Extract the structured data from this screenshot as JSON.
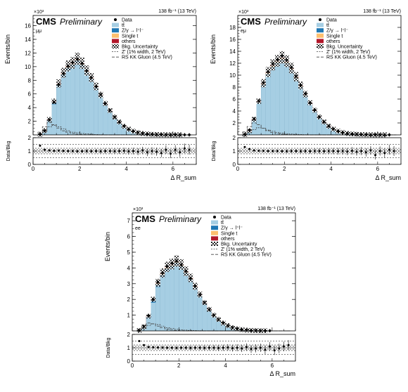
{
  "chart_data": [
    {
      "type": "bar",
      "panel": "top-left",
      "channel": "μμ",
      "experiment": "CMS",
      "status": "Preliminary",
      "lumi": "138 fb⁻¹ (13 TeV)",
      "exponent_label": "×10³",
      "ylabel": "Events/bin",
      "xlabel": "Δ R_sum",
      "ratio_ylabel": "Data/Bkg",
      "ylim": [
        0,
        17.5
      ],
      "ratio_ylim": [
        0,
        2
      ],
      "xlim": [
        0,
        7
      ],
      "yticks": [
        2,
        4,
        6,
        8,
        10,
        12,
        14,
        16
      ],
      "xticks": [
        0,
        2,
        4,
        6
      ],
      "ratio_yticks": [
        0,
        1,
        2
      ],
      "legend_position": "top-right",
      "legend": [
        "Data",
        "tt̄",
        "Z/γ → l⁺l⁻",
        "Single t",
        "others",
        "Bkg. Uncertainty",
        "Z′ (1% width, 2 TeV)",
        "RS KK Gluon (4.5 TeV)"
      ],
      "bin_edges": [
        0.2,
        0.4,
        0.6,
        0.8,
        1.0,
        1.2,
        1.4,
        1.6,
        1.8,
        2.0,
        2.2,
        2.4,
        2.6,
        2.8,
        3.0,
        3.2,
        3.4,
        3.6,
        3.8,
        4.0,
        4.2,
        4.4,
        4.6,
        4.8,
        5.0,
        5.2,
        5.4,
        5.6,
        5.8,
        6.0,
        6.2,
        6.4,
        6.6,
        6.8
      ],
      "series": [
        {
          "name": "tt̄",
          "values": [
            0.05,
            0.5,
            2.0,
            4.5,
            7.0,
            8.5,
            9.5,
            10.0,
            10.6,
            10.0,
            9.0,
            8.0,
            6.8,
            5.6,
            4.4,
            3.4,
            2.5,
            1.8,
            1.2,
            0.8,
            0.5,
            0.3,
            0.2,
            0.12,
            0.08,
            0.05,
            0.03,
            0.02,
            0.01,
            0.01,
            0.01,
            0.0,
            0.0
          ]
        },
        {
          "name": "Z/γ → l⁺l⁻",
          "values": [
            0.02,
            0.1,
            0.2,
            0.3,
            0.35,
            0.35,
            0.35,
            0.3,
            0.3,
            0.25,
            0.2,
            0.2,
            0.15,
            0.12,
            0.1,
            0.08,
            0.06,
            0.05,
            0.03,
            0.02,
            0.02,
            0.01,
            0.01,
            0.01,
            0.0,
            0.0,
            0.0,
            0.0,
            0.0,
            0.0,
            0.0,
            0.0,
            0.0
          ]
        },
        {
          "name": "Single t",
          "values": [
            0.0,
            0.02,
            0.05,
            0.1,
            0.15,
            0.2,
            0.2,
            0.2,
            0.2,
            0.2,
            0.18,
            0.15,
            0.12,
            0.1,
            0.08,
            0.06,
            0.04,
            0.03,
            0.02,
            0.02,
            0.01,
            0.01,
            0.0,
            0.0,
            0.0,
            0.0,
            0.0,
            0.0,
            0.0,
            0.0,
            0.0,
            0.0,
            0.0
          ]
        },
        {
          "name": "others",
          "values": [
            0.0,
            0.01,
            0.02,
            0.03,
            0.04,
            0.05,
            0.05,
            0.05,
            0.05,
            0.05,
            0.05,
            0.04,
            0.03,
            0.03,
            0.02,
            0.02,
            0.01,
            0.01,
            0.01,
            0.0,
            0.0,
            0.0,
            0.0,
            0.0,
            0.0,
            0.0,
            0.0,
            0.0,
            0.0,
            0.0,
            0.0,
            0.0,
            0.0
          ]
        },
        {
          "name": "Data",
          "values": [
            0.08,
            0.6,
            2.2,
            4.8,
            7.4,
            9.0,
            10.1,
            10.6,
            11.1,
            10.5,
            9.4,
            8.4,
            7.1,
            5.9,
            4.6,
            3.6,
            2.6,
            1.9,
            1.3,
            0.85,
            0.55,
            0.35,
            0.22,
            0.14,
            0.09,
            0.06,
            0.04,
            0.02,
            0.02,
            0.01,
            0.01,
            0.01,
            0.01
          ]
        }
      ],
      "signal_zprime": [
        0.2,
        0.6,
        1.2,
        1.4,
        1.2,
        0.9,
        0.6,
        0.4,
        0.3,
        0.2,
        0.15,
        0.1,
        0.05,
        0.02,
        0.01,
        0.0,
        0.0,
        0.0,
        0.0,
        0.0,
        0.0,
        0.0,
        0.0,
        0.0,
        0.0,
        0.0,
        0.0,
        0.0,
        0.0,
        0.0,
        0.0,
        0.0,
        0.0
      ],
      "signal_kk": [
        0.4,
        1.2,
        1.8,
        1.5,
        1.0,
        0.6,
        0.4,
        0.2,
        0.1,
        0.05,
        0.02,
        0.01,
        0.0,
        0.0,
        0.0,
        0.0,
        0.0,
        0.0,
        0.0,
        0.0,
        0.0,
        0.0,
        0.0,
        0.0,
        0.0,
        0.0,
        0.0,
        0.0,
        0.0,
        0.0,
        0.0,
        0.0,
        0.0
      ],
      "ratio": [
        1.4,
        1.1,
        1.05,
        1.02,
        1.03,
        1.01,
        1.0,
        1.0,
        0.98,
        0.99,
        1.0,
        0.99,
        1.0,
        0.98,
        1.0,
        1.0,
        0.99,
        1.0,
        1.02,
        0.98,
        1.0,
        0.95,
        1.05,
        0.9,
        1.0,
        0.95,
        0.85,
        1.1,
        0.8,
        1.1,
        0.9,
        1.2,
        1.1
      ]
    },
    {
      "type": "bar",
      "panel": "top-right",
      "channel": "eμ",
      "experiment": "CMS",
      "status": "Preliminary",
      "lumi": "138 fb⁻¹ (13 TeV)",
      "exponent_label": "×10³",
      "ylabel": "Events/bin",
      "xlabel": "Δ R_sum",
      "ratio_ylabel": "Data/Bkg",
      "ylim": [
        0,
        20
      ],
      "ratio_ylim": [
        0,
        2
      ],
      "xlim": [
        0,
        7
      ],
      "yticks": [
        2,
        4,
        6,
        8,
        10,
        12,
        14,
        16,
        18
      ],
      "xticks": [
        0,
        2,
        4,
        6
      ],
      "ratio_yticks": [
        0,
        1,
        2
      ],
      "legend_position": "top-right",
      "legend": [
        "Data",
        "tt̄",
        "Z/γ → l⁺l⁻",
        "Single t",
        "others",
        "Bkg. Uncertainty",
        "Z′ (1% width, 2 TeV)",
        "RS KK Gluon (4.5 TeV)"
      ],
      "bin_edges": [
        0.2,
        0.4,
        0.6,
        0.8,
        1.0,
        1.2,
        1.4,
        1.6,
        1.8,
        2.0,
        2.2,
        2.4,
        2.6,
        2.8,
        3.0,
        3.2,
        3.4,
        3.6,
        3.8,
        4.0,
        4.2,
        4.4,
        4.6,
        4.8,
        5.0,
        5.2,
        5.4,
        5.6,
        5.8,
        6.0,
        6.2,
        6.4,
        6.6,
        6.8
      ],
      "series": [
        {
          "name": "tt̄",
          "values": [
            0.05,
            0.6,
            2.4,
            5.3,
            8.2,
            10.0,
            11.2,
            11.9,
            12.5,
            11.9,
            10.8,
            9.4,
            8.0,
            6.6,
            5.2,
            4.0,
            2.9,
            2.1,
            1.4,
            0.95,
            0.6,
            0.38,
            0.24,
            0.15,
            0.1,
            0.06,
            0.04,
            0.02,
            0.01,
            0.01,
            0.01,
            0.0,
            0.0
          ]
        },
        {
          "name": "Z/γ → l⁺l⁻",
          "values": [
            0.01,
            0.05,
            0.1,
            0.15,
            0.18,
            0.18,
            0.16,
            0.14,
            0.12,
            0.1,
            0.08,
            0.07,
            0.05,
            0.04,
            0.03,
            0.02,
            0.02,
            0.01,
            0.01,
            0.0,
            0.0,
            0.0,
            0.0,
            0.0,
            0.0,
            0.0,
            0.0,
            0.0,
            0.0,
            0.0,
            0.0,
            0.0,
            0.0
          ]
        },
        {
          "name": "Single t",
          "values": [
            0.0,
            0.03,
            0.08,
            0.15,
            0.22,
            0.28,
            0.3,
            0.3,
            0.3,
            0.28,
            0.25,
            0.22,
            0.18,
            0.14,
            0.11,
            0.08,
            0.06,
            0.04,
            0.03,
            0.02,
            0.01,
            0.01,
            0.0,
            0.0,
            0.0,
            0.0,
            0.0,
            0.0,
            0.0,
            0.0,
            0.0,
            0.0,
            0.0
          ]
        },
        {
          "name": "others",
          "values": [
            0.0,
            0.01,
            0.02,
            0.04,
            0.05,
            0.06,
            0.06,
            0.06,
            0.06,
            0.06,
            0.05,
            0.05,
            0.04,
            0.03,
            0.02,
            0.02,
            0.01,
            0.01,
            0.01,
            0.0,
            0.0,
            0.0,
            0.0,
            0.0,
            0.0,
            0.0,
            0.0,
            0.0,
            0.0,
            0.0,
            0.0,
            0.0,
            0.0
          ]
        },
        {
          "name": "Data",
          "values": [
            0.08,
            0.8,
            2.7,
            5.7,
            8.7,
            10.6,
            11.9,
            12.6,
            13.2,
            12.5,
            11.3,
            9.8,
            8.3,
            6.9,
            5.4,
            4.2,
            3.0,
            2.2,
            1.5,
            1.0,
            0.62,
            0.4,
            0.25,
            0.16,
            0.1,
            0.06,
            0.04,
            0.02,
            0.02,
            0.01,
            0.01,
            0.01,
            0.0
          ]
        }
      ],
      "signal_zprime": [
        0.1,
        0.4,
        0.9,
        1.2,
        1.1,
        0.8,
        0.6,
        0.4,
        0.3,
        0.2,
        0.15,
        0.1,
        0.05,
        0.02,
        0.01,
        0.0,
        0.0,
        0.0,
        0.0,
        0.0,
        0.0,
        0.0,
        0.0,
        0.0,
        0.0,
        0.0,
        0.0,
        0.0,
        0.0,
        0.0,
        0.0,
        0.0,
        0.0
      ],
      "signal_kk": [
        0.5,
        1.4,
        2.0,
        1.7,
        1.1,
        0.7,
        0.4,
        0.2,
        0.1,
        0.05,
        0.02,
        0.01,
        0.0,
        0.0,
        0.0,
        0.0,
        0.0,
        0.0,
        0.0,
        0.0,
        0.0,
        0.0,
        0.0,
        0.0,
        0.0,
        0.0,
        0.0,
        0.0,
        0.0,
        0.0,
        0.0,
        0.0,
        0.0
      ],
      "ratio": [
        1.3,
        1.15,
        1.05,
        1.02,
        1.01,
        1.0,
        1.0,
        1.0,
        0.99,
        0.99,
        1.0,
        1.0,
        0.99,
        1.0,
        0.98,
        1.0,
        1.0,
        0.99,
        1.0,
        1.0,
        0.98,
        1.0,
        0.96,
        1.02,
        0.95,
        1.0,
        0.9,
        1.05,
        0.7,
        1.0,
        0.85,
        1.1,
        1.0
      ]
    },
    {
      "type": "bar",
      "panel": "bottom-center",
      "channel": "ee",
      "experiment": "CMS",
      "status": "Preliminary",
      "lumi": "138 fb⁻¹ (13 TeV)",
      "exponent_label": "×10³",
      "ylabel": "Events/bin",
      "xlabel": "Δ R_sum",
      "ratio_ylabel": "Data/Bkg",
      "ylim": [
        0,
        7.5
      ],
      "ratio_ylim": [
        0,
        2
      ],
      "xlim": [
        0,
        7
      ],
      "yticks": [
        1,
        2,
        3,
        4,
        5,
        6,
        7
      ],
      "xticks": [
        0,
        2,
        4,
        6
      ],
      "ratio_yticks": [
        0,
        1,
        2
      ],
      "legend_position": "top-right",
      "legend": [
        "Data",
        "tt̄",
        "Z/γ → l⁺l⁻",
        "Single t",
        "others",
        "Bkg. Uncertainty",
        "Z′ (1% width, 2 TeV)",
        "RS KK Gluon (4.5 TeV)"
      ],
      "bin_edges": [
        0.2,
        0.4,
        0.6,
        0.8,
        1.0,
        1.2,
        1.4,
        1.6,
        1.8,
        2.0,
        2.2,
        2.4,
        2.6,
        2.8,
        3.0,
        3.2,
        3.4,
        3.6,
        3.8,
        4.0,
        4.2,
        4.4,
        4.6,
        4.8,
        5.0,
        5.2,
        5.4,
        5.6,
        5.8,
        6.0,
        6.2,
        6.4,
        6.6,
        6.8
      ],
      "series": [
        {
          "name": "tt̄",
          "values": [
            0.02,
            0.2,
            0.8,
            1.8,
            2.8,
            3.4,
            3.8,
            4.0,
            4.2,
            4.0,
            3.6,
            3.2,
            2.7,
            2.2,
            1.7,
            1.3,
            0.95,
            0.7,
            0.48,
            0.32,
            0.2,
            0.13,
            0.08,
            0.05,
            0.03,
            0.02,
            0.01,
            0.01,
            0.0,
            0.0,
            0.0,
            0.0,
            0.0
          ]
        },
        {
          "name": "Z/γ → l⁺l⁻",
          "values": [
            0.01,
            0.05,
            0.1,
            0.14,
            0.16,
            0.16,
            0.15,
            0.13,
            0.12,
            0.1,
            0.08,
            0.07,
            0.06,
            0.05,
            0.04,
            0.03,
            0.02,
            0.02,
            0.01,
            0.01,
            0.0,
            0.0,
            0.0,
            0.0,
            0.0,
            0.0,
            0.0,
            0.0,
            0.0,
            0.0,
            0.0,
            0.0,
            0.0
          ]
        },
        {
          "name": "Single t",
          "values": [
            0.0,
            0.01,
            0.03,
            0.06,
            0.08,
            0.1,
            0.1,
            0.1,
            0.1,
            0.1,
            0.09,
            0.08,
            0.06,
            0.05,
            0.04,
            0.03,
            0.02,
            0.01,
            0.01,
            0.01,
            0.0,
            0.0,
            0.0,
            0.0,
            0.0,
            0.0,
            0.0,
            0.0,
            0.0,
            0.0,
            0.0,
            0.0,
            0.0
          ]
        },
        {
          "name": "others",
          "values": [
            0.0,
            0.0,
            0.01,
            0.01,
            0.02,
            0.02,
            0.02,
            0.02,
            0.02,
            0.02,
            0.02,
            0.02,
            0.01,
            0.01,
            0.01,
            0.01,
            0.0,
            0.0,
            0.0,
            0.0,
            0.0,
            0.0,
            0.0,
            0.0,
            0.0,
            0.0,
            0.0,
            0.0,
            0.0,
            0.0,
            0.0,
            0.0,
            0.0
          ]
        },
        {
          "name": "Data",
          "values": [
            0.03,
            0.28,
            0.95,
            2.0,
            3.1,
            3.7,
            4.1,
            4.3,
            4.45,
            4.2,
            3.8,
            3.35,
            2.85,
            2.3,
            1.8,
            1.35,
            1.0,
            0.72,
            0.5,
            0.33,
            0.21,
            0.13,
            0.08,
            0.05,
            0.03,
            0.02,
            0.01,
            0.01,
            0.01,
            0.0,
            0.0,
            0.0,
            0.0
          ]
        }
      ],
      "signal_zprime": [
        0.05,
        0.15,
        0.35,
        0.45,
        0.4,
        0.3,
        0.2,
        0.15,
        0.1,
        0.07,
        0.05,
        0.03,
        0.02,
        0.01,
        0.0,
        0.0,
        0.0,
        0.0,
        0.0,
        0.0,
        0.0,
        0.0,
        0.0,
        0.0,
        0.0,
        0.0,
        0.0,
        0.0,
        0.0,
        0.0,
        0.0,
        0.0,
        0.0
      ],
      "signal_kk": [
        0.1,
        0.35,
        0.5,
        0.45,
        0.3,
        0.2,
        0.12,
        0.06,
        0.03,
        0.01,
        0.0,
        0.0,
        0.0,
        0.0,
        0.0,
        0.0,
        0.0,
        0.0,
        0.0,
        0.0,
        0.0,
        0.0,
        0.0,
        0.0,
        0.0,
        0.0,
        0.0,
        0.0,
        0.0,
        0.0,
        0.0,
        0.0,
        0.0
      ],
      "ratio": [
        1.5,
        1.2,
        1.05,
        1.03,
        1.02,
        1.01,
        1.0,
        1.0,
        0.99,
        1.0,
        1.0,
        0.99,
        1.0,
        1.0,
        0.99,
        1.0,
        1.0,
        0.98,
        1.0,
        1.02,
        0.97,
        1.0,
        0.95,
        1.05,
        0.9,
        0.95,
        1.0,
        0.85,
        1.1,
        0.8,
        0.95,
        1.1,
        1.2
      ]
    }
  ],
  "colors": {
    "ttbar": "#a6cee3",
    "dy": "#1f78b4",
    "single_t": "#fdbf6f",
    "others": "#b2182b",
    "data": "#000000"
  }
}
